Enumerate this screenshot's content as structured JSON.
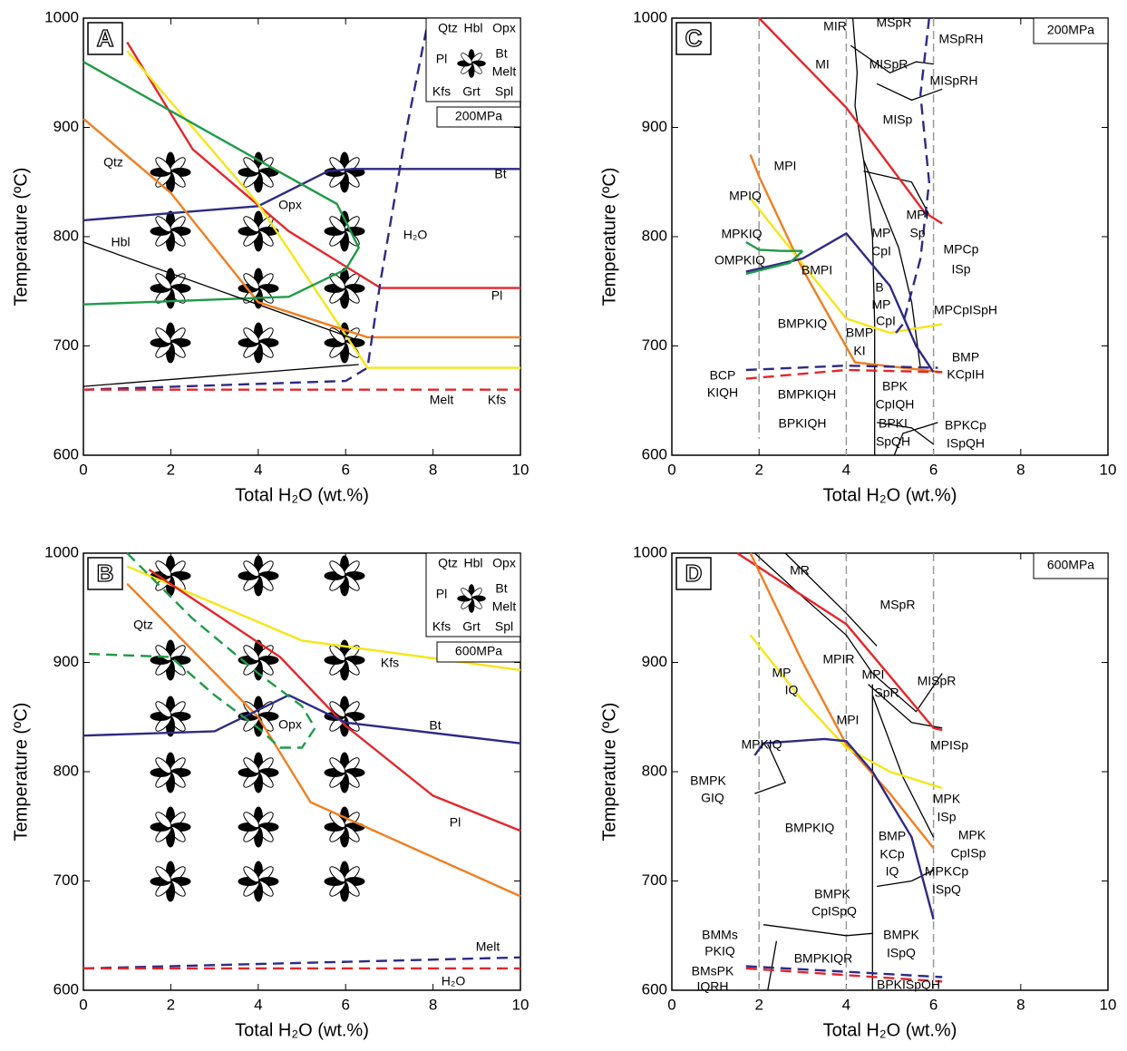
{
  "chart_data": [
    {
      "type": "line",
      "panel": "A",
      "pressure": "200MPa",
      "xlabel": "Total H₂O (wt.%)",
      "ylabel": "Temperature (ºC)",
      "xlim": [
        0,
        10
      ],
      "ylim": [
        600,
        1000
      ],
      "xticks": [
        0,
        2,
        4,
        6,
        8,
        10
      ],
      "yticks": [
        600,
        700,
        800,
        900,
        1000
      ],
      "legend_box": [
        "Qtz",
        "Hbl",
        "Opx",
        "Pl",
        "Bt",
        "Melt",
        "Kfs",
        "Grt",
        "Spl"
      ],
      "series": [
        {
          "color": "#2e2a84",
          "x": [
            0,
            4,
            5.6,
            6.2,
            10
          ],
          "values": [
            815,
            828,
            860,
            862,
            862
          ]
        },
        {
          "color": "#e4262b",
          "x": [
            1,
            2.5,
            4.7,
            6.8,
            10
          ],
          "values": [
            978,
            880,
            805,
            753,
            753
          ]
        },
        {
          "color": "#f5e51b",
          "x": [
            1,
            4,
            6.5,
            10
          ],
          "values": [
            970,
            830,
            680,
            680
          ]
        },
        {
          "color": "#f07e22",
          "x": [
            0,
            2,
            4,
            6.5,
            10
          ],
          "values": [
            908,
            840,
            740,
            708,
            708
          ]
        },
        {
          "color": "#1f9a48",
          "x": [
            0,
            4,
            5.8,
            6.3,
            6,
            4.7,
            0
          ],
          "values": [
            960,
            870,
            830,
            790,
            770,
            745,
            738
          ]
        },
        {
          "color": "#000000",
          "x": [
            0,
            6.3
          ],
          "values": [
            795,
            705
          ]
        },
        {
          "color": "#000000",
          "x": [
            0,
            6.3
          ],
          "values": [
            663,
            683
          ]
        },
        {
          "color": "#2e2a84",
          "dash": true,
          "x": [
            0,
            6,
            6.5,
            6.8,
            7.4,
            7.9
          ],
          "values": [
            660,
            668,
            680,
            760,
            900,
            1000
          ]
        },
        {
          "color": "#e4262b",
          "dash": true,
          "x": [
            0,
            10
          ],
          "values": [
            660,
            660
          ]
        }
      ],
      "annotations": [
        "Qtz",
        "Opx",
        "H₂O",
        "Bt",
        "Hbl",
        "Pl",
        "Melt",
        "Kfs"
      ]
    },
    {
      "type": "line",
      "panel": "B",
      "pressure": "600MPa",
      "xlabel": "Total H₂O (wt.%)",
      "ylabel": "Temperature (ºC)",
      "xlim": [
        0,
        10
      ],
      "ylim": [
        600,
        1000
      ],
      "xticks": [
        0,
        2,
        4,
        6,
        8,
        10
      ],
      "yticks": [
        600,
        700,
        800,
        900,
        1000
      ],
      "legend_box": [
        "Qtz",
        "Hbl",
        "Opx",
        "Pl",
        "Bt",
        "Melt",
        "Kfs",
        "Grt",
        "Spl"
      ],
      "series": [
        {
          "color": "#f5e51b",
          "x": [
            1,
            5,
            10
          ],
          "values": [
            988,
            920,
            893
          ]
        },
        {
          "color": "#e4262b",
          "x": [
            1.5,
            4.5,
            6,
            8,
            10
          ],
          "values": [
            985,
            905,
            842,
            778,
            746
          ]
        },
        {
          "color": "#f07e22",
          "x": [
            1,
            4,
            5.2,
            10
          ],
          "values": [
            972,
            850,
            772,
            686
          ]
        },
        {
          "color": "#2e2a84",
          "x": [
            0,
            3,
            4.7,
            6,
            10
          ],
          "values": [
            833,
            837,
            870,
            845,
            826
          ]
        },
        {
          "color": "#1f9a48",
          "dash": true,
          "x": [
            1,
            2.5,
            4,
            5,
            5.3,
            5,
            4.5,
            4,
            3,
            2,
            0
          ],
          "values": [
            1000,
            940,
            890,
            860,
            840,
            822,
            822,
            840,
            870,
            905,
            908
          ]
        },
        {
          "color": "#2e2a84",
          "dash": true,
          "x": [
            0,
            10
          ],
          "values": [
            620,
            630
          ]
        },
        {
          "color": "#e4262b",
          "dash": true,
          "x": [
            0,
            10
          ],
          "values": [
            620,
            620
          ]
        }
      ],
      "annotations": [
        "Qtz",
        "Kfs",
        "Opx",
        "Bt",
        "Pl",
        "Melt",
        "H₂O"
      ]
    },
    {
      "type": "line",
      "panel": "C",
      "pressure": "200MPa",
      "xlabel": "Total H₂O (wt.%)",
      "ylabel": "Temperature (ºC)",
      "xlim": [
        0,
        10
      ],
      "ylim": [
        600,
        1000
      ],
      "xticks": [
        0,
        2,
        4,
        6,
        8,
        10
      ],
      "yticks": [
        600,
        700,
        800,
        900,
        1000
      ],
      "series": [
        {
          "color": "#999999",
          "dash": true,
          "x": [
            2,
            2
          ],
          "values": [
            1000,
            615
          ]
        },
        {
          "color": "#999999",
          "dash": true,
          "x": [
            4,
            4
          ],
          "values": [
            1000,
            600
          ]
        },
        {
          "color": "#999999",
          "dash": true,
          "x": [
            6,
            6
          ],
          "values": [
            1000,
            600
          ]
        },
        {
          "color": "#000000",
          "x": [
            4.15,
            4.25,
            4.2,
            4.4,
            4.6,
            4.65,
            4.65
          ],
          "values": [
            1000,
            950,
            920,
            870,
            800,
            720,
            600
          ]
        },
        {
          "color": "#000000",
          "x": [
            4.1,
            5,
            5.6,
            6
          ],
          "values": [
            975,
            950,
            960,
            958
          ]
        },
        {
          "color": "#000000",
          "x": [
            4.7,
            5.5,
            6.2
          ],
          "values": [
            940,
            925,
            935
          ]
        },
        {
          "color": "#000000",
          "x": [
            4.4,
            5.2,
            5.5,
            5.7
          ],
          "values": [
            870,
            790,
            740,
            680
          ]
        },
        {
          "color": "#000000",
          "x": [
            4.4,
            5.5,
            5.9
          ],
          "values": [
            860,
            850,
            820
          ]
        },
        {
          "color": "#000000",
          "x": [
            4.7,
            5.5,
            6
          ],
          "values": [
            630,
            625,
            610
          ]
        },
        {
          "color": "#000000",
          "x": [
            5.1,
            5.3,
            6.1
          ],
          "values": [
            600,
            620,
            630
          ]
        },
        {
          "color": "#e4262b",
          "x": [
            2,
            4,
            5.8,
            6.2
          ],
          "values": [
            1000,
            918,
            822,
            812
          ]
        },
        {
          "color": "#f07e22",
          "x": [
            1.8,
            2,
            3,
            4.2,
            6.2
          ],
          "values": [
            875,
            855,
            770,
            685,
            676
          ]
        },
        {
          "color": "#f5e51b",
          "x": [
            1.8,
            3,
            4,
            5,
            6.2
          ],
          "values": [
            835,
            775,
            725,
            712,
            720
          ]
        },
        {
          "color": "#2e2a84",
          "x": [
            1.7,
            3,
            4,
            5,
            5.6,
            6
          ],
          "values": [
            768,
            780,
            803,
            755,
            700,
            676
          ]
        },
        {
          "color": "#1f9a48",
          "x": [
            1.7,
            2,
            2.5,
            3
          ],
          "values": [
            795,
            788,
            787,
            787
          ]
        },
        {
          "color": "#1f9a48",
          "x": [
            1.7,
            2.7,
            3
          ],
          "values": [
            766,
            776,
            787
          ]
        },
        {
          "color": "#2e2a84",
          "dash": true,
          "x": [
            5.9,
            5.7,
            5.9,
            5.7,
            5.3,
            5.1
          ],
          "values": [
            1000,
            930,
            850,
            780,
            720,
            710
          ]
        },
        {
          "color": "#2e2a84",
          "dash": true,
          "x": [
            1.7,
            4,
            6.1
          ],
          "values": [
            678,
            682,
            680
          ]
        },
        {
          "color": "#e4262b",
          "dash": true,
          "x": [
            1.7,
            4,
            6.2
          ],
          "values": [
            670,
            678,
            676
          ]
        }
      ],
      "annotations": [
        "MIR",
        "MSpR",
        "MSpRH",
        "MI",
        "MISpR",
        "MISpRH",
        "MISp",
        "MPI",
        "MPIQ",
        "MPKIQ",
        "OMPKIQ",
        "BMPI",
        "MP",
        "CpI",
        "MPI",
        "Sp",
        "MPCp",
        "ISp",
        "B",
        "MP",
        "CpI",
        "MPCpISpH",
        "BMPKIQ",
        "BMP",
        "KI",
        "BMP",
        "KCpIH",
        "BCP",
        "KIQH",
        "BMPKIQH",
        "BPK",
        "CpIQH",
        "BPKIQH",
        "BPKI",
        "SpQH",
        "BPKCp",
        "ISpQH"
      ]
    },
    {
      "type": "line",
      "panel": "D",
      "pressure": "600MPa",
      "xlabel": "Total H₂O (wt.%)",
      "ylabel": "Temperature (ºC)",
      "xlim": [
        0,
        10
      ],
      "ylim": [
        600,
        1000
      ],
      "xticks": [
        0,
        2,
        4,
        6,
        8,
        10
      ],
      "yticks": [
        600,
        700,
        800,
        900,
        1000
      ],
      "series": [
        {
          "color": "#999999",
          "dash": true,
          "x": [
            2,
            2
          ],
          "values": [
            1000,
            600
          ]
        },
        {
          "color": "#999999",
          "dash": true,
          "x": [
            4,
            4
          ],
          "values": [
            1000,
            600
          ]
        },
        {
          "color": "#999999",
          "dash": true,
          "x": [
            6,
            6
          ],
          "values": [
            1000,
            600
          ]
        },
        {
          "color": "#000000",
          "x": [
            1.9,
            3,
            4,
            4.6,
            5.6,
            6.2
          ],
          "values": [
            1000,
            960,
            925,
            890,
            855,
            890
          ]
        },
        {
          "color": "#000000",
          "x": [
            2.6,
            4,
            4.7
          ],
          "values": [
            1000,
            945,
            915
          ]
        },
        {
          "color": "#000000",
          "x": [
            4.6,
            4.6
          ],
          "values": [
            880,
            600
          ]
        },
        {
          "color": "#000000",
          "x": [
            4.6,
            5.3,
            6
          ],
          "values": [
            870,
            795,
            740
          ]
        },
        {
          "color": "#000000",
          "x": [
            4.5,
            5.5,
            6.2
          ],
          "values": [
            880,
            845,
            840
          ]
        },
        {
          "color": "#000000",
          "x": [
            2.2,
            2.6,
            1.9
          ],
          "values": [
            825,
            790,
            780
          ]
        },
        {
          "color": "#000000",
          "x": [
            2.1,
            4,
            4.6
          ],
          "values": [
            660,
            650,
            652
          ]
        },
        {
          "color": "#000000",
          "x": [
            2.4,
            2.2
          ],
          "values": [
            645,
            600
          ]
        },
        {
          "color": "#000000",
          "x": [
            4.7,
            5.5,
            6
          ],
          "values": [
            695,
            700,
            710
          ]
        },
        {
          "color": "#e4262b",
          "x": [
            1.5,
            4,
            6,
            6.2
          ],
          "values": [
            1000,
            935,
            840,
            838
          ]
        },
        {
          "color": "#f07e22",
          "x": [
            1.8,
            3,
            4,
            5,
            6
          ],
          "values": [
            1000,
            900,
            825,
            780,
            730
          ]
        },
        {
          "color": "#f5e51b",
          "x": [
            1.8,
            3,
            4,
            5,
            6.2
          ],
          "values": [
            925,
            865,
            822,
            800,
            785
          ]
        },
        {
          "color": "#2e2a84",
          "x": [
            1.9,
            2.1,
            3.5,
            4,
            4.6,
            5.5,
            6
          ],
          "values": [
            815,
            826,
            830,
            828,
            800,
            740,
            665
          ]
        },
        {
          "color": "#2e2a84",
          "dash": true,
          "x": [
            1.7,
            6.2
          ],
          "values": [
            622,
            612
          ]
        },
        {
          "color": "#e4262b",
          "dash": true,
          "x": [
            1.7,
            6.2
          ],
          "values": [
            620,
            608
          ]
        }
      ],
      "annotations": [
        "MR",
        "MSpR",
        "MPIR",
        "MP",
        "IQ",
        "MPI",
        "SpR",
        "MISpR",
        "MPI",
        "MPKIQ",
        "MPISp",
        "BMPK",
        "GIQ",
        "BMPKIQ",
        "MPK",
        "ISp",
        "MPK",
        "CpISp",
        "BMP",
        "KCp",
        "IQ",
        "MPKCp",
        "ISpQ",
        "BMPK",
        "CpISpQ",
        "BMPK",
        "ISpQ",
        "BMMs",
        "PKIQ",
        "BMsPK",
        "IQRH",
        "BMPKIQR",
        "BPKISpQH"
      ]
    }
  ]
}
